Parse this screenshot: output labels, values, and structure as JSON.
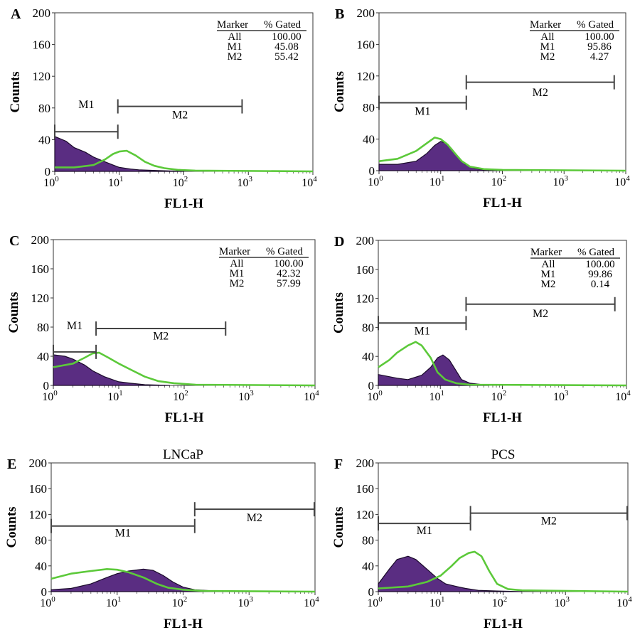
{
  "panels": [
    {
      "letter": "A",
      "title": "",
      "ylabel": "Counts",
      "xlabel": "FL1-H",
      "yticks": [
        "0",
        "40",
        "80",
        "120",
        "160",
        "200"
      ],
      "ylim": [
        0,
        200
      ],
      "xlim_log10": [
        0,
        4
      ],
      "table": {
        "headers": [
          "Marker",
          "% Gated"
        ],
        "rows": [
          [
            "All",
            "100.00"
          ],
          [
            "M1",
            "45.08"
          ],
          [
            "M2",
            "55.42"
          ]
        ]
      },
      "markers": [
        {
          "label": "M1",
          "from": 1,
          "to": 9.5,
          "y": 50,
          "label_y": 85
        },
        {
          "label": "M2",
          "from": 9.5,
          "to": 800,
          "y": 82,
          "label_y": 72
        }
      ],
      "chart_data": {
        "type": "area",
        "x_scale": "log",
        "series": [
          {
            "values": [
              [
                1,
                44
              ],
              [
                1.5,
                38
              ],
              [
                2,
                30
              ],
              [
                3,
                24
              ],
              [
                4,
                18
              ],
              [
                6,
                12
              ],
              [
                8,
                8
              ],
              [
                10,
                5
              ],
              [
                15,
                3
              ],
              [
                20,
                2
              ],
              [
                40,
                1
              ],
              [
                100,
                0
              ]
            ]
          },
          {
            "values": [
              [
                1,
                5
              ],
              [
                2,
                5
              ],
              [
                4,
                8
              ],
              [
                6,
                15
              ],
              [
                8,
                22
              ],
              [
                10,
                25
              ],
              [
                13,
                26
              ],
              [
                18,
                20
              ],
              [
                25,
                12
              ],
              [
                35,
                7
              ],
              [
                50,
                4
              ],
              [
                80,
                2
              ],
              [
                150,
                1
              ],
              [
                10000,
                0
              ]
            ]
          }
        ]
      }
    },
    {
      "letter": "B",
      "title": "",
      "ylabel": "Counts",
      "xlabel": "FL1-H",
      "yticks": [
        "0",
        "40",
        "80",
        "120",
        "160",
        "200"
      ],
      "ylim": [
        0,
        200
      ],
      "xlim_log10": [
        0,
        4
      ],
      "table": {
        "headers": [
          "Marker",
          "% Gated"
        ],
        "rows": [
          [
            "All",
            "100.00"
          ],
          [
            "M1",
            "95.86"
          ],
          [
            "M2",
            "4.27"
          ]
        ]
      },
      "markers": [
        {
          "label": "M1",
          "from": 1,
          "to": 26,
          "y": 86,
          "label_y": 76
        },
        {
          "label": "M2",
          "from": 26,
          "to": 6500,
          "y": 112,
          "label_y": 100
        }
      ],
      "chart_data": {
        "type": "area",
        "x_scale": "log",
        "series": [
          {
            "values": [
              [
                1,
                8
              ],
              [
                2,
                8
              ],
              [
                4,
                12
              ],
              [
                6,
                22
              ],
              [
                8,
                32
              ],
              [
                10,
                37
              ],
              [
                12,
                35
              ],
              [
                15,
                28
              ],
              [
                20,
                16
              ],
              [
                25,
                8
              ],
              [
                35,
                3
              ],
              [
                50,
                1
              ],
              [
                100,
                0
              ]
            ]
          },
          {
            "values": [
              [
                1,
                12
              ],
              [
                2,
                15
              ],
              [
                4,
                25
              ],
              [
                6,
                35
              ],
              [
                8,
                42
              ],
              [
                10,
                40
              ],
              [
                13,
                33
              ],
              [
                17,
                22
              ],
              [
                22,
                12
              ],
              [
                30,
                5
              ],
              [
                50,
                2
              ],
              [
                100,
                1
              ],
              [
                10000,
                0
              ]
            ]
          }
        ]
      }
    },
    {
      "letter": "C",
      "title": "",
      "ylabel": "Counts",
      "xlabel": "FL1-H",
      "yticks": [
        "0",
        "40",
        "80",
        "120",
        "160",
        "200"
      ],
      "ylim": [
        0,
        200
      ],
      "xlim_log10": [
        0,
        4
      ],
      "table": {
        "headers": [
          "Marker",
          "% Gated"
        ],
        "rows": [
          [
            "All",
            "100.00"
          ],
          [
            "M1",
            "42.32"
          ],
          [
            "M2",
            "57.99"
          ]
        ]
      },
      "markers": [
        {
          "label": "M1",
          "from": 1,
          "to": 4.5,
          "y": 46,
          "label_y": 83
        },
        {
          "label": "M2",
          "from": 4.5,
          "to": 430,
          "y": 78,
          "label_y": 69
        }
      ],
      "chart_data": {
        "type": "area",
        "x_scale": "log",
        "series": [
          {
            "values": [
              [
                1,
                42
              ],
              [
                1.5,
                40
              ],
              [
                2,
                36
              ],
              [
                3,
                28
              ],
              [
                4,
                20
              ],
              [
                6,
                12
              ],
              [
                8,
                8
              ],
              [
                10,
                5
              ],
              [
                15,
                3
              ],
              [
                25,
                1
              ],
              [
                60,
                0
              ]
            ]
          },
          {
            "values": [
              [
                1,
                25
              ],
              [
                2,
                30
              ],
              [
                3,
                38
              ],
              [
                4,
                44
              ],
              [
                5,
                45
              ],
              [
                7,
                38
              ],
              [
                10,
                30
              ],
              [
                15,
                22
              ],
              [
                25,
                12
              ],
              [
                40,
                6
              ],
              [
                70,
                3
              ],
              [
                150,
                1
              ],
              [
                10000,
                0
              ]
            ]
          }
        ]
      }
    },
    {
      "letter": "D",
      "title": "",
      "ylabel": "Counts",
      "xlabel": "FL1-H",
      "yticks": [
        "0",
        "40",
        "80",
        "120",
        "160",
        "200"
      ],
      "ylim": [
        0,
        200
      ],
      "xlim_log10": [
        0,
        4
      ],
      "table": {
        "headers": [
          "Marker",
          "% Gated"
        ],
        "rows": [
          [
            "All",
            "100.00"
          ],
          [
            "M1",
            "99.86"
          ],
          [
            "M2",
            "0.14"
          ]
        ]
      },
      "markers": [
        {
          "label": "M1",
          "from": 1,
          "to": 26,
          "y": 86,
          "label_y": 76
        },
        {
          "label": "M2",
          "from": 26,
          "to": 6500,
          "y": 112,
          "label_y": 100
        }
      ],
      "chart_data": {
        "type": "area",
        "x_scale": "log",
        "series": [
          {
            "values": [
              [
                1,
                15
              ],
              [
                2,
                10
              ],
              [
                3,
                8
              ],
              [
                5,
                14
              ],
              [
                7,
                25
              ],
              [
                9,
                38
              ],
              [
                11,
                42
              ],
              [
                14,
                35
              ],
              [
                18,
                20
              ],
              [
                22,
                8
              ],
              [
                30,
                3
              ],
              [
                60,
                0
              ]
            ]
          },
          {
            "values": [
              [
                1,
                25
              ],
              [
                1.5,
                35
              ],
              [
                2,
                45
              ],
              [
                3,
                55
              ],
              [
                4,
                60
              ],
              [
                5,
                55
              ],
              [
                7,
                38
              ],
              [
                9,
                18
              ],
              [
                12,
                8
              ],
              [
                18,
                3
              ],
              [
                30,
                1
              ],
              [
                10000,
                0
              ]
            ]
          }
        ]
      }
    },
    {
      "letter": "E",
      "title": "LNCaP",
      "ylabel": "Counts",
      "xlabel": "FL1-H",
      "yticks": [
        "0",
        "40",
        "80",
        "120",
        "160",
        "200"
      ],
      "ylim": [
        0,
        200
      ],
      "xlim_log10": [
        0,
        4
      ],
      "table": null,
      "markers": [
        {
          "label": "M1",
          "from": 1,
          "to": 150,
          "y": 102,
          "label_y": 92
        },
        {
          "label": "M2",
          "from": 150,
          "to": 10000,
          "y": 128,
          "label_y": 116
        }
      ],
      "chart_data": {
        "type": "area",
        "x_scale": "log",
        "series": [
          {
            "values": [
              [
                1,
                3
              ],
              [
                2,
                5
              ],
              [
                4,
                12
              ],
              [
                7,
                22
              ],
              [
                10,
                28
              ],
              [
                15,
                32
              ],
              [
                25,
                35
              ],
              [
                35,
                33
              ],
              [
                50,
                25
              ],
              [
                70,
                15
              ],
              [
                100,
                7
              ],
              [
                150,
                3
              ],
              [
                300,
                1
              ],
              [
                1000,
                0
              ]
            ]
          },
          {
            "values": [
              [
                1,
                20
              ],
              [
                2,
                28
              ],
              [
                4,
                32
              ],
              [
                7,
                35
              ],
              [
                10,
                34
              ],
              [
                15,
                30
              ],
              [
                25,
                22
              ],
              [
                40,
                12
              ],
              [
                60,
                6
              ],
              [
                100,
                3
              ],
              [
                200,
                1
              ],
              [
                10000,
                0
              ]
            ]
          }
        ]
      }
    },
    {
      "letter": "F",
      "title": "PCS",
      "ylabel": "Counts",
      "xlabel": "FL1-H",
      "yticks": [
        "0",
        "40",
        "80",
        "120",
        "160",
        "200"
      ],
      "ylim": [
        0,
        200
      ],
      "xlim_log10": [
        0,
        4
      ],
      "table": null,
      "markers": [
        {
          "label": "M1",
          "from": 1,
          "to": 30,
          "y": 106,
          "label_y": 96
        },
        {
          "label": "M2",
          "from": 30,
          "to": 10000,
          "y": 122,
          "label_y": 111
        }
      ],
      "chart_data": {
        "type": "area",
        "x_scale": "log",
        "series": [
          {
            "values": [
              [
                1,
                12
              ],
              [
                1.5,
                35
              ],
              [
                2,
                50
              ],
              [
                3,
                55
              ],
              [
                4,
                50
              ],
              [
                6,
                35
              ],
              [
                9,
                20
              ],
              [
                12,
                12
              ],
              [
                18,
                8
              ],
              [
                25,
                5
              ],
              [
                40,
                2
              ],
              [
                80,
                1
              ],
              [
                200,
                0
              ]
            ]
          },
          {
            "values": [
              [
                1,
                5
              ],
              [
                3,
                8
              ],
              [
                6,
                15
              ],
              [
                10,
                25
              ],
              [
                15,
                40
              ],
              [
                20,
                52
              ],
              [
                28,
                60
              ],
              [
                35,
                62
              ],
              [
                45,
                55
              ],
              [
                60,
                32
              ],
              [
                80,
                12
              ],
              [
                120,
                4
              ],
              [
                200,
                2
              ],
              [
                10000,
                0
              ]
            ]
          }
        ]
      }
    }
  ],
  "colors": {
    "filled": "#5a2d82",
    "filled_edge": "#1a0a2a",
    "line": "#5cc93a",
    "axis": "#333333",
    "marker": "#444444"
  }
}
